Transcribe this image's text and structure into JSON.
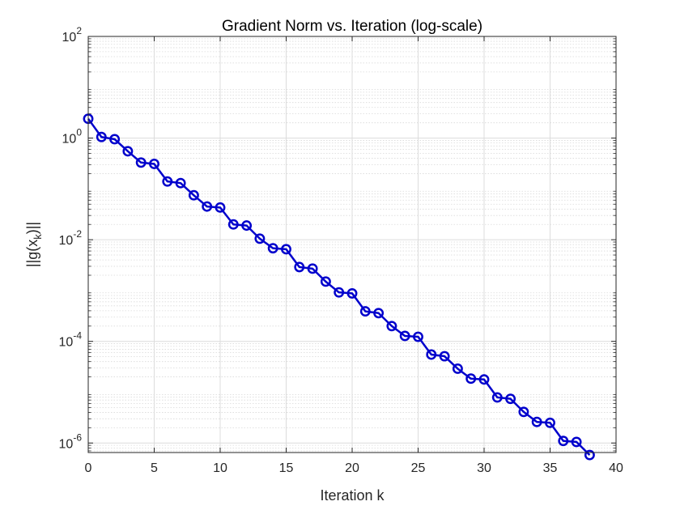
{
  "chart_data": {
    "type": "line",
    "title": "Gradient Norm vs. Iteration (log-scale)",
    "xlabel": "Iteration k",
    "ylabel_parts": [
      "||g(x",
      "k",
      ")||"
    ],
    "xlim": [
      0,
      40
    ],
    "ylim": [
      6.5e-07,
      100
    ],
    "yscale": "log",
    "grid": true,
    "minor_grid": true,
    "x_ticks": [
      0,
      5,
      10,
      15,
      20,
      25,
      30,
      35,
      40
    ],
    "x_tick_labels": [
      "0",
      "5",
      "10",
      "15",
      "20",
      "25",
      "30",
      "35",
      "40"
    ],
    "y_ticks": [
      {
        "value": 1e-06,
        "base": "10",
        "exp": "-6"
      },
      {
        "value": 0.0001,
        "base": "10",
        "exp": "-4"
      },
      {
        "value": 0.01,
        "base": "10",
        "exp": "-2"
      },
      {
        "value": 1,
        "base": "10",
        "exp": "0"
      },
      {
        "value": 100,
        "base": "10",
        "exp": "2"
      }
    ],
    "series_color": "#0000cc",
    "marker": "circle",
    "x": [
      0,
      1,
      2,
      3,
      4,
      5,
      6,
      7,
      8,
      9,
      10,
      11,
      12,
      13,
      14,
      15,
      16,
      17,
      18,
      19,
      20,
      21,
      22,
      23,
      24,
      25,
      26,
      27,
      28,
      29,
      30,
      31,
      32,
      33,
      34,
      35,
      36,
      37,
      38
    ],
    "y": [
      2.4,
      1.05,
      0.95,
      0.55,
      0.33,
      0.31,
      0.14,
      0.13,
      0.075,
      0.045,
      0.043,
      0.02,
      0.019,
      0.0105,
      0.0068,
      0.0065,
      0.0029,
      0.0027,
      0.0015,
      0.00092,
      0.00088,
      0.00039,
      0.00036,
      0.0002,
      0.000128,
      0.000123,
      5.5e-05,
      5.1e-05,
      2.9e-05,
      1.85e-05,
      1.78e-05,
      7.9e-06,
      7.4e-06,
      4.1e-06,
      2.6e-06,
      2.5e-06,
      1.1e-06,
      1.05e-06,
      5.8e-07
    ]
  }
}
